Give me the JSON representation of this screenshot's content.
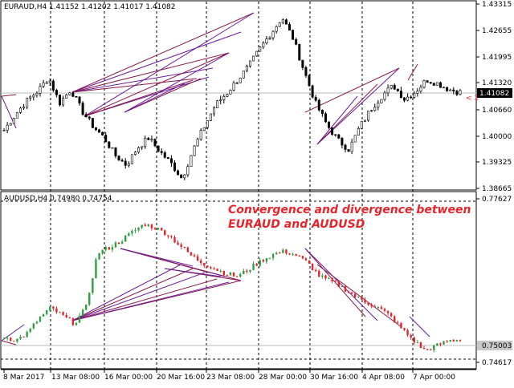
{
  "window": {
    "upper_title": "EURAUD,H4  1.41152 1.41202 1.41017 1.41082",
    "lower_title": "AUDUSD,H4 0.74980 0.74754",
    "annotation_line1": "Convergence and divergence between",
    "annotation_line2": "EURAUD and AUDUSD",
    "current_price_marker": "< 1"
  },
  "upper_axis": {
    "ticks": [
      "1.43315",
      "1.42655",
      "1.41995",
      "1.41320",
      "1.40660",
      "1.40000",
      "1.39325",
      "1.38665"
    ],
    "current_price": "1.41082"
  },
  "lower_axis": {
    "ticks": [
      "0.77627",
      "0.74617"
    ],
    "current_price": "0.75003"
  },
  "time_axis": {
    "labels": [
      "8 Mar 2017",
      "13 Mar 08:00",
      "16 Mar 00:00",
      "20 Mar 16:00",
      "23 Mar 08:00",
      "28 Mar 00:00",
      "30 Mar 16:00",
      "4 Apr 08:00",
      "7 Apr 00:00"
    ]
  },
  "colors": {
    "bull": "#2ea043",
    "bear": "#e8242a",
    "wick_upper": "#000000",
    "divergence_line": "#8b1a4a",
    "divergence_line2": "#6a1b9a",
    "annotation": "#e8242a"
  },
  "chart_data": [
    {
      "type": "candlestick",
      "title": "EURAUD,H4  1.41152 1.41202 1.41017 1.41082",
      "ylim": [
        1.38665,
        1.43315
      ],
      "x": [
        "8 Mar 2017",
        "13 Mar 08:00",
        "16 Mar 00:00",
        "20 Mar 16:00",
        "23 Mar 08:00",
        "28 Mar 00:00",
        "30 Mar 16:00",
        "4 Apr 08:00",
        "7 Apr 00:00"
      ],
      "close_path": [
        1.401,
        1.405,
        1.4085,
        1.411,
        1.4145,
        1.408,
        1.4115,
        1.406,
        1.402,
        1.399,
        1.3945,
        1.392,
        1.3965,
        1.399,
        1.3955,
        1.3925,
        1.3885,
        1.396,
        1.402,
        1.4075,
        1.4105,
        1.414,
        1.4175,
        1.422,
        1.426,
        1.43,
        1.4245,
        1.416,
        1.408,
        1.4025,
        1.3985,
        1.396,
        1.402,
        1.4065,
        1.41,
        1.4125,
        1.409,
        1.411,
        1.414,
        1.413,
        1.4115,
        1.4108
      ],
      "last": 1.41082
    },
    {
      "type": "candlestick",
      "title": "AUDUSD,H4 0.74980 0.74754",
      "ylim": [
        0.74617,
        0.77627
      ],
      "close_path": [
        0.7505,
        0.7498,
        0.7512,
        0.754,
        0.756,
        0.7545,
        0.753,
        0.756,
        0.7665,
        0.7675,
        0.7688,
        0.7705,
        0.772,
        0.7712,
        0.77,
        0.768,
        0.766,
        0.7645,
        0.7635,
        0.7625,
        0.762,
        0.7635,
        0.765,
        0.7662,
        0.7668,
        0.766,
        0.7645,
        0.762,
        0.761,
        0.7598,
        0.7582,
        0.757,
        0.756,
        0.7545,
        0.752,
        0.7498,
        0.7478,
        0.7488,
        0.7497,
        0.75
      ],
      "last": 0.75003
    }
  ]
}
